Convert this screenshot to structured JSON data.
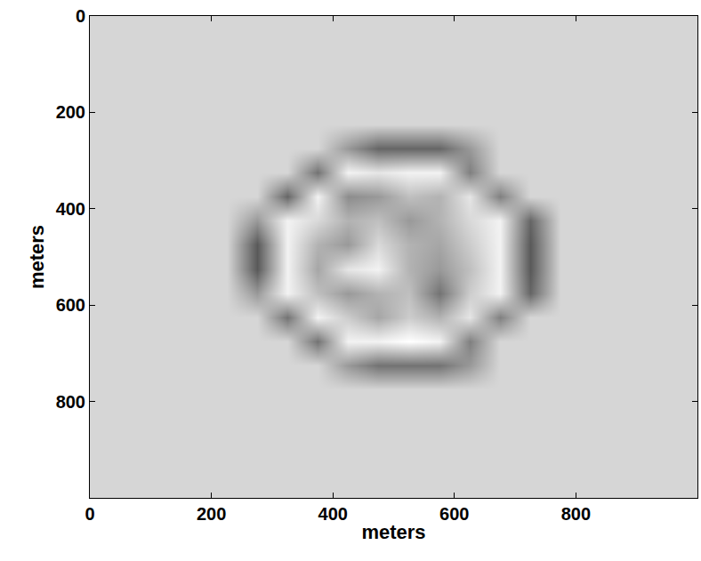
{
  "chart_data": {
    "type": "heatmap",
    "xlabel": "meters",
    "ylabel": "meters",
    "xlim": [
      0,
      1000
    ],
    "ylim": [
      0,
      1000
    ],
    "xticks": [
      0,
      200,
      400,
      600,
      800
    ],
    "yticks": [
      0,
      200,
      400,
      600,
      800
    ],
    "grid": false,
    "zlim": [
      0,
      1
    ],
    "x": [
      25,
      75,
      125,
      175,
      225,
      275,
      325,
      375,
      425,
      475,
      525,
      575,
      625,
      675,
      725,
      775,
      825,
      875,
      925,
      975
    ],
    "y": [
      25,
      75,
      125,
      175,
      225,
      275,
      325,
      375,
      425,
      475,
      525,
      575,
      625,
      675,
      725,
      775,
      825,
      875,
      925,
      975
    ],
    "z": [
      [
        0.84,
        0.84,
        0.84,
        0.84,
        0.84,
        0.84,
        0.84,
        0.84,
        0.84,
        0.84,
        0.84,
        0.84,
        0.84,
        0.84,
        0.84,
        0.84,
        0.84,
        0.84,
        0.84,
        0.84
      ],
      [
        0.84,
        0.84,
        0.84,
        0.84,
        0.84,
        0.84,
        0.84,
        0.84,
        0.84,
        0.84,
        0.84,
        0.84,
        0.84,
        0.84,
        0.84,
        0.84,
        0.84,
        0.84,
        0.84,
        0.84
      ],
      [
        0.84,
        0.84,
        0.84,
        0.84,
        0.84,
        0.84,
        0.84,
        0.84,
        0.84,
        0.84,
        0.84,
        0.84,
        0.84,
        0.84,
        0.84,
        0.84,
        0.84,
        0.84,
        0.84,
        0.84
      ],
      [
        0.84,
        0.84,
        0.84,
        0.84,
        0.84,
        0.84,
        0.84,
        0.84,
        0.84,
        0.84,
        0.84,
        0.84,
        0.84,
        0.84,
        0.84,
        0.84,
        0.84,
        0.84,
        0.84,
        0.84
      ],
      [
        0.84,
        0.84,
        0.84,
        0.84,
        0.84,
        0.84,
        0.84,
        0.84,
        0.84,
        0.84,
        0.84,
        0.84,
        0.84,
        0.84,
        0.84,
        0.84,
        0.84,
        0.84,
        0.84,
        0.84
      ],
      [
        0.84,
        0.84,
        0.84,
        0.84,
        0.84,
        0.84,
        0.84,
        0.84,
        0.6,
        0.4,
        0.4,
        0.4,
        0.6,
        0.84,
        0.84,
        0.84,
        0.84,
        0.84,
        0.84,
        0.84
      ],
      [
        0.84,
        0.84,
        0.84,
        0.84,
        0.84,
        0.84,
        0.84,
        0.45,
        0.95,
        0.9,
        0.95,
        0.95,
        0.5,
        0.84,
        0.84,
        0.84,
        0.84,
        0.84,
        0.84,
        0.84
      ],
      [
        0.84,
        0.84,
        0.84,
        0.84,
        0.84,
        0.84,
        0.4,
        0.95,
        0.55,
        0.6,
        0.75,
        0.7,
        0.9,
        0.5,
        0.84,
        0.84,
        0.84,
        0.84,
        0.84,
        0.84
      ],
      [
        0.84,
        0.84,
        0.84,
        0.84,
        0.84,
        0.6,
        0.95,
        0.85,
        0.7,
        0.75,
        0.6,
        0.7,
        0.85,
        0.95,
        0.4,
        0.84,
        0.84,
        0.84,
        0.84,
        0.84
      ],
      [
        0.84,
        0.84,
        0.84,
        0.84,
        0.84,
        0.35,
        0.95,
        0.7,
        0.6,
        0.85,
        0.7,
        0.65,
        0.8,
        0.95,
        0.35,
        0.84,
        0.84,
        0.84,
        0.84,
        0.84
      ],
      [
        0.84,
        0.84,
        0.84,
        0.84,
        0.84,
        0.35,
        0.95,
        0.65,
        0.9,
        0.95,
        0.7,
        0.6,
        0.75,
        0.95,
        0.35,
        0.84,
        0.84,
        0.84,
        0.84,
        0.84
      ],
      [
        0.84,
        0.84,
        0.84,
        0.84,
        0.84,
        0.6,
        0.95,
        0.75,
        0.6,
        0.7,
        0.75,
        0.45,
        0.8,
        0.95,
        0.4,
        0.84,
        0.84,
        0.84,
        0.84,
        0.84
      ],
      [
        0.84,
        0.84,
        0.84,
        0.84,
        0.84,
        0.84,
        0.45,
        0.95,
        0.8,
        0.65,
        0.8,
        0.7,
        0.9,
        0.5,
        0.84,
        0.84,
        0.84,
        0.84,
        0.84,
        0.84
      ],
      [
        0.84,
        0.84,
        0.84,
        0.84,
        0.84,
        0.84,
        0.84,
        0.45,
        0.95,
        0.95,
        1,
        0.95,
        0.5,
        0.84,
        0.84,
        0.84,
        0.84,
        0.84,
        0.84,
        0.84
      ],
      [
        0.84,
        0.84,
        0.84,
        0.84,
        0.84,
        0.84,
        0.84,
        0.84,
        0.6,
        0.45,
        0.45,
        0.45,
        0.6,
        0.84,
        0.84,
        0.84,
        0.84,
        0.84,
        0.84,
        0.84
      ],
      [
        0.84,
        0.84,
        0.84,
        0.84,
        0.84,
        0.84,
        0.84,
        0.84,
        0.84,
        0.84,
        0.84,
        0.84,
        0.84,
        0.84,
        0.84,
        0.84,
        0.84,
        0.84,
        0.84,
        0.84
      ],
      [
        0.84,
        0.84,
        0.84,
        0.84,
        0.84,
        0.84,
        0.84,
        0.84,
        0.84,
        0.84,
        0.84,
        0.84,
        0.84,
        0.84,
        0.84,
        0.84,
        0.84,
        0.84,
        0.84,
        0.84
      ],
      [
        0.84,
        0.84,
        0.84,
        0.84,
        0.84,
        0.84,
        0.84,
        0.84,
        0.84,
        0.84,
        0.84,
        0.84,
        0.84,
        0.84,
        0.84,
        0.84,
        0.84,
        0.84,
        0.84,
        0.84
      ],
      [
        0.84,
        0.84,
        0.84,
        0.84,
        0.84,
        0.84,
        0.84,
        0.84,
        0.84,
        0.84,
        0.84,
        0.84,
        0.84,
        0.84,
        0.84,
        0.84,
        0.84,
        0.84,
        0.84,
        0.84
      ],
      [
        0.84,
        0.84,
        0.84,
        0.84,
        0.84,
        0.84,
        0.84,
        0.84,
        0.84,
        0.84,
        0.84,
        0.84,
        0.84,
        0.84,
        0.84,
        0.84,
        0.84,
        0.84,
        0.84,
        0.84
      ]
    ]
  }
}
